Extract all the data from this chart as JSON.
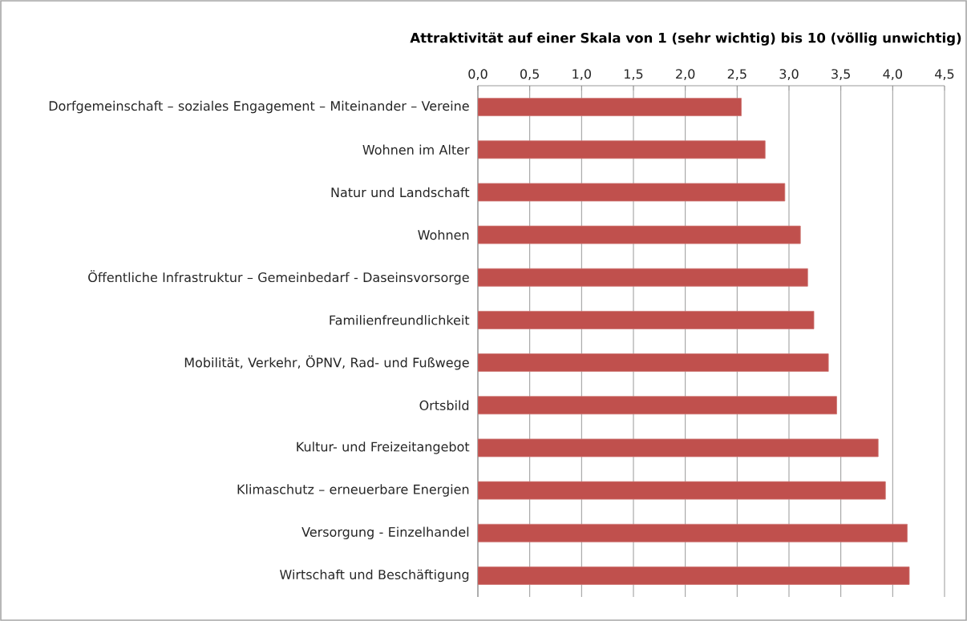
{
  "chart_data": {
    "type": "bar",
    "orientation": "horizontal",
    "title": "Attraktivität auf einer Skala von 1 (sehr wichtig) bis 10 (völlig unwichtig)",
    "categories": [
      "Dorfgemeinschaft – soziales Engagement – Miteinander – Vereine",
      "Wohnen im Alter",
      "Natur und Landschaft",
      "Wohnen",
      "Öffentliche Infrastruktur – Gemeinbedarf - Daseinsvorsorge",
      "Familienfreundlichkeit",
      "Mobilität, Verkehr, ÖPNV, Rad- und Fußwege",
      "Ortsbild",
      "Kultur- und Freizeitangebot",
      "Klimaschutz – erneuerbare Energien",
      "Versorgung - Einzelhandel",
      "Wirtschaft und Beschäftigung"
    ],
    "values": [
      2.54,
      2.77,
      2.96,
      3.11,
      3.18,
      3.24,
      3.38,
      3.46,
      3.86,
      3.93,
      4.14,
      4.16
    ],
    "color": "#c0504d",
    "xlim": [
      0,
      4.5
    ],
    "xticks": [
      {
        "value": 0,
        "label": "0,0"
      },
      {
        "value": 0.5,
        "label": "0,5"
      },
      {
        "value": 1,
        "label": "1,0"
      },
      {
        "value": 1.5,
        "label": "1,5"
      },
      {
        "value": 2,
        "label": "2,0"
      },
      {
        "value": 2.5,
        "label": "2,5"
      },
      {
        "value": 3,
        "label": "3,0"
      },
      {
        "value": 3.5,
        "label": "3,5"
      },
      {
        "value": 4,
        "label": "4,0"
      },
      {
        "value": 4.5,
        "label": "4,5"
      }
    ],
    "grid": "x"
  }
}
